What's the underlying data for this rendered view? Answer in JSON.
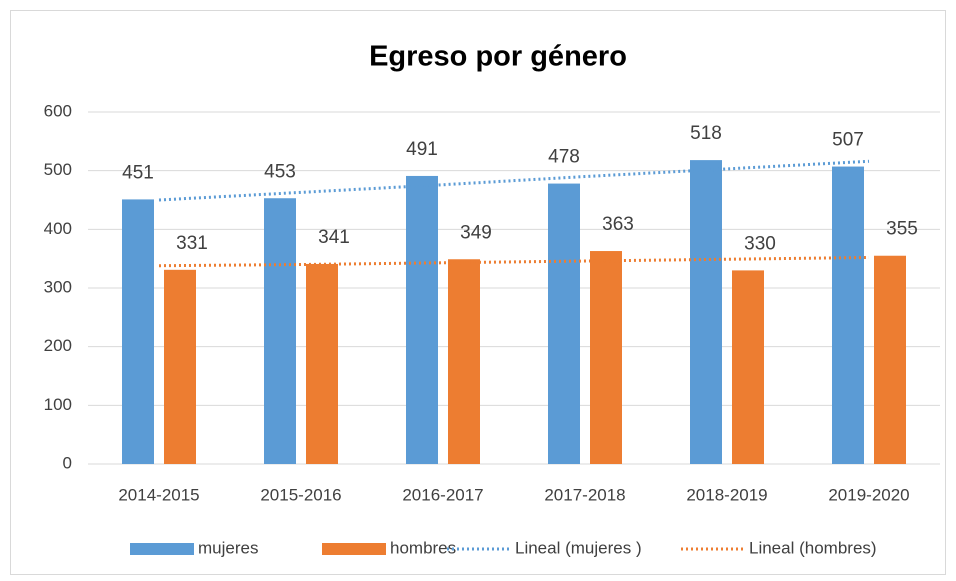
{
  "chart_data": {
    "type": "bar",
    "title": "Egreso por género",
    "categories": [
      "2014-2015",
      "2015-2016",
      "2016-2017",
      "2017-2018",
      "2018-2019",
      "2019-2020"
    ],
    "series": [
      {
        "name": "mujeres",
        "color": "#5b9bd5",
        "values": [
          451,
          453,
          491,
          478,
          518,
          507
        ]
      },
      {
        "name": "hombres",
        "color": "#ed7d31",
        "values": [
          331,
          341,
          349,
          363,
          330,
          355
        ]
      },
      {
        "name": "Lineal (mujeres )",
        "type": "line",
        "style": "dotted",
        "color": "#5b9bd5",
        "values": [
          450,
          463,
          476,
          490,
          503,
          516
        ]
      },
      {
        "name": "Lineal (hombres)",
        "type": "line",
        "style": "dotted",
        "color": "#ed7d31",
        "values": [
          338,
          340,
          343,
          346,
          349,
          352
        ]
      }
    ],
    "ylim": [
      0,
      600
    ],
    "yticks": [
      0,
      100,
      200,
      300,
      400,
      500,
      600
    ],
    "grid": true,
    "legend": "bottom"
  }
}
